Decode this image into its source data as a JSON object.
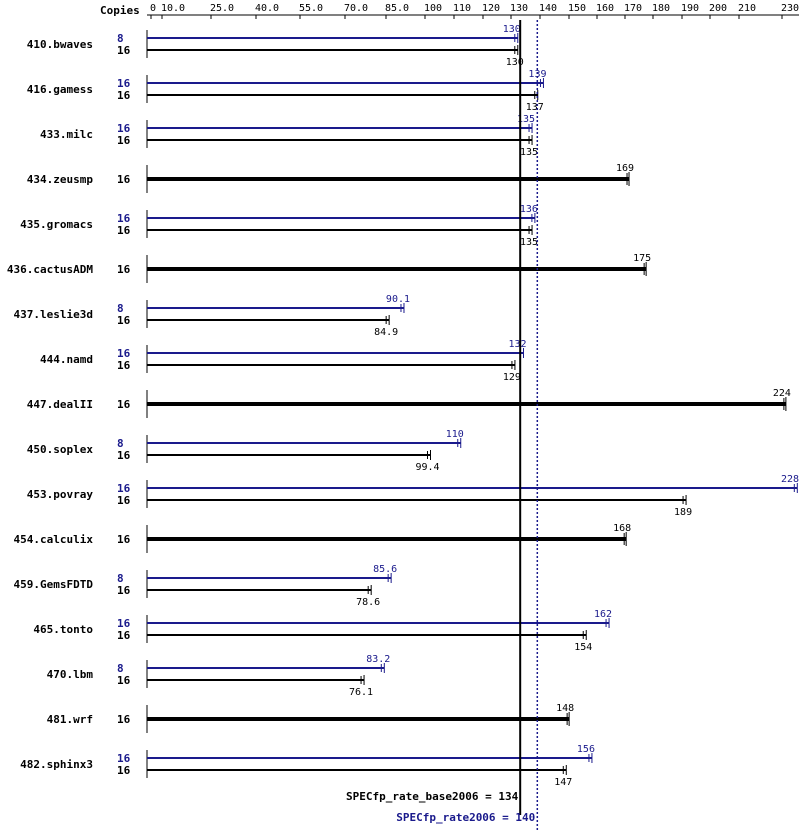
{
  "chart_data": {
    "type": "bar",
    "orientation": "horizontal",
    "header_label": "Copies",
    "x_ticks": [
      "0",
      "10.0",
      "25.0",
      "40.0",
      "55.0",
      "70.0",
      "85.0",
      "100",
      "110",
      "120",
      "130",
      "140",
      "150",
      "160",
      "170",
      "180",
      "190",
      "200",
      "210",
      "230"
    ],
    "xlim": [
      0,
      230
    ],
    "colors": {
      "base": "#000000",
      "peak": "#1a1a8c"
    },
    "benchmarks": [
      {
        "name": "410.bwaves",
        "base_copies": "16",
        "base": 130,
        "base_label": "130",
        "peak_copies": "8",
        "peak": 130,
        "peak_label": "130"
      },
      {
        "name": "416.gamess",
        "base_copies": "16",
        "base": 137,
        "base_label": "137",
        "peak_copies": "16",
        "peak": 139,
        "peak_label": "139"
      },
      {
        "name": "433.milc",
        "base_copies": "16",
        "base": 135,
        "base_label": "135",
        "peak_copies": "16",
        "peak": 135,
        "peak_label": "135"
      },
      {
        "name": "434.zeusmp",
        "base_copies": "16",
        "base": 169,
        "base_label": "169",
        "peak_copies": null,
        "peak": null,
        "peak_label": null
      },
      {
        "name": "435.gromacs",
        "base_copies": "16",
        "base": 135,
        "base_label": "135",
        "peak_copies": "16",
        "peak": 136,
        "peak_label": "136"
      },
      {
        "name": "436.cactusADM",
        "base_copies": "16",
        "base": 175,
        "base_label": "175",
        "peak_copies": null,
        "peak": null,
        "peak_label": null
      },
      {
        "name": "437.leslie3d",
        "base_copies": "16",
        "base": 84.9,
        "base_label": "84.9",
        "peak_copies": "8",
        "peak": 90.1,
        "peak_label": "90.1"
      },
      {
        "name": "444.namd",
        "base_copies": "16",
        "base": 129,
        "base_label": "129",
        "peak_copies": "16",
        "peak": 132,
        "peak_label": "132"
      },
      {
        "name": "447.dealII",
        "base_copies": "16",
        "base": 224,
        "base_label": "224",
        "peak_copies": null,
        "peak": null,
        "peak_label": null
      },
      {
        "name": "450.soplex",
        "base_copies": "16",
        "base": 99.4,
        "base_label": "99.4",
        "peak_copies": "8",
        "peak": 110,
        "peak_label": "110"
      },
      {
        "name": "453.povray",
        "base_copies": "16",
        "base": 189,
        "base_label": "189",
        "peak_copies": "16",
        "peak": 228,
        "peak_label": "228"
      },
      {
        "name": "454.calculix",
        "base_copies": "16",
        "base": 168,
        "base_label": "168",
        "peak_copies": null,
        "peak": null,
        "peak_label": null
      },
      {
        "name": "459.GemsFDTD",
        "base_copies": "16",
        "base": 78.6,
        "base_label": "78.6",
        "peak_copies": "8",
        "peak": 85.6,
        "peak_label": "85.6"
      },
      {
        "name": "465.tonto",
        "base_copies": "16",
        "base": 154,
        "base_label": "154",
        "peak_copies": "16",
        "peak": 162,
        "peak_label": "162"
      },
      {
        "name": "470.lbm",
        "base_copies": "16",
        "base": 76.1,
        "base_label": "76.1",
        "peak_copies": "8",
        "peak": 83.2,
        "peak_label": "83.2"
      },
      {
        "name": "481.wrf",
        "base_copies": "16",
        "base": 148,
        "base_label": "148",
        "peak_copies": null,
        "peak": null,
        "peak_label": null
      },
      {
        "name": "482.sphinx3",
        "base_copies": "16",
        "base": 147,
        "base_label": "147",
        "peak_copies": "16",
        "peak": 156,
        "peak_label": "156"
      }
    ],
    "base_summary": {
      "label": "SPECfp_rate_base2006 = 134",
      "value": 134
    },
    "peak_summary": {
      "label": "SPECfp_rate2006 = 140",
      "value": 140
    }
  }
}
